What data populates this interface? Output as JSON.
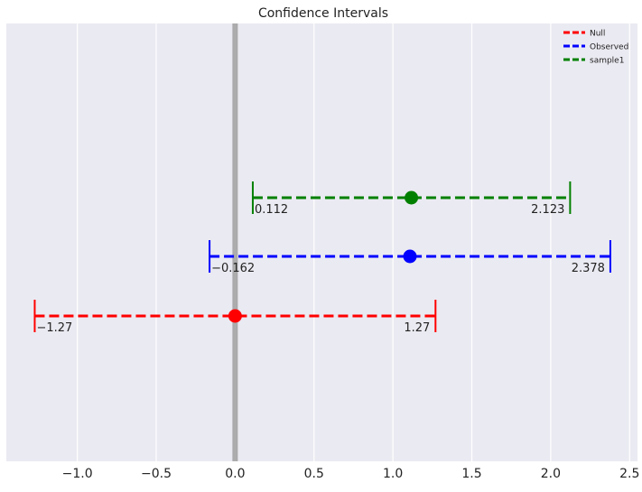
{
  "chart_data": {
    "type": "errorbar",
    "title": "Confidence Intervals",
    "xlabel": "",
    "ylabel": "",
    "xlim": [
      -1.45,
      2.55
    ],
    "x_ticks": [
      -1.0,
      -0.5,
      0.0,
      0.5,
      1.0,
      1.5,
      2.0,
      2.5
    ],
    "x_tick_labels": [
      "−1.0",
      "−0.5",
      "0.0",
      "0.5",
      "1.0",
      "1.5",
      "2.0",
      "2.5"
    ],
    "grid": true,
    "reference_line_x": 0.0,
    "legend_position": "top-right",
    "series": [
      {
        "name": "Null",
        "color": "#ff0000",
        "center": 0.0,
        "lower": -1.27,
        "upper": 1.27,
        "lower_label": "−1.27",
        "upper_label": "1.27"
      },
      {
        "name": "Observed",
        "color": "#0000ff",
        "center": 1.108,
        "lower": -0.162,
        "upper": 2.378,
        "lower_label": "−0.162",
        "upper_label": "2.378"
      },
      {
        "name": "sample1",
        "color": "#008000",
        "center": 1.117,
        "lower": 0.112,
        "upper": 2.123,
        "lower_label": "0.112",
        "upper_label": "2.123"
      }
    ]
  }
}
